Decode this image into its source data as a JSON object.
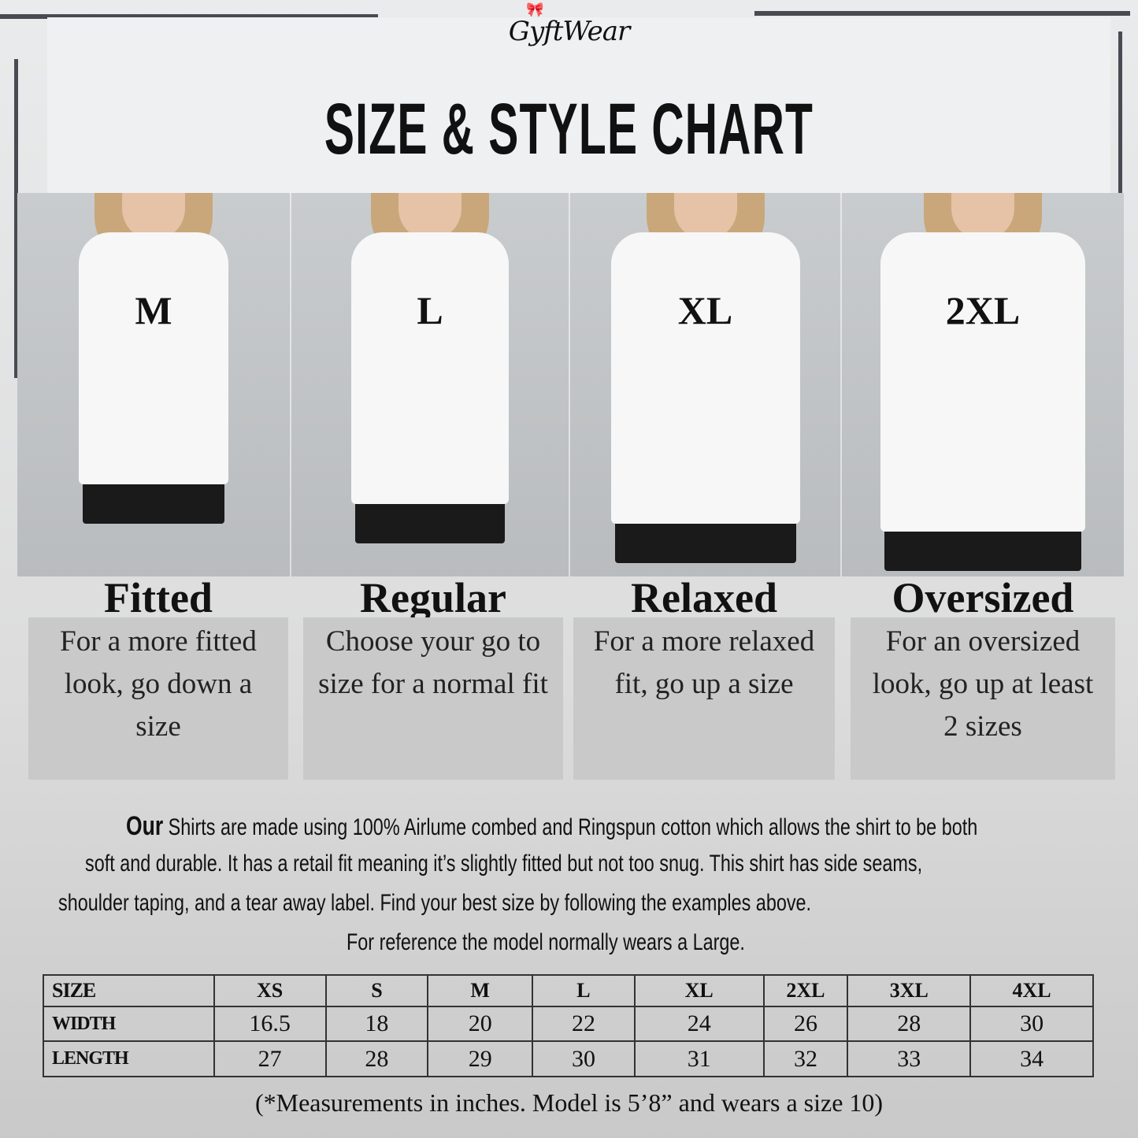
{
  "brand": {
    "logo": "GyftWear",
    "accent": "#1e90ff"
  },
  "title": "SIZE & STYLE CHART",
  "panels": [
    {
      "size": "M",
      "style": "Fitted",
      "desc": "For a more fitted look, go down a size"
    },
    {
      "size": "L",
      "style": "Regular",
      "desc": "Choose your go to size for a normal fit"
    },
    {
      "size": "XL",
      "style": "Relaxed",
      "desc": "For a more relaxed fit, go up a size"
    },
    {
      "size": "2XL",
      "style": "Oversized",
      "desc": "For an oversized look, go up at least 2 sizes"
    }
  ],
  "description": {
    "lead": "Our",
    "line1": "Shirts are made using 100% Airlume combed and Ringspun cotton which allows the shirt to be both",
    "line2": "soft and durable. It has a retail fit meaning it’s slightly fitted but not too snug. This shirt has side seams,",
    "line3": "shoulder taping, and a tear away label. Find your best size by following the examples above.",
    "line4": "For reference the model normally wears a Large."
  },
  "size_table": {
    "headers": [
      "SIZE",
      "XS",
      "S",
      "M",
      "L",
      "XL",
      "2XL",
      "3XL",
      "4XL"
    ],
    "rows": [
      [
        "WIDTH",
        "16.5",
        "18",
        "20",
        "22",
        "24",
        "26",
        "28",
        "30"
      ],
      [
        "LENGTH",
        "27",
        "28",
        "29",
        "30",
        "31",
        "32",
        "33",
        "34"
      ]
    ]
  },
  "footnote": "(*Measurements in inches. Model is 5’8” and wears a size 10)"
}
